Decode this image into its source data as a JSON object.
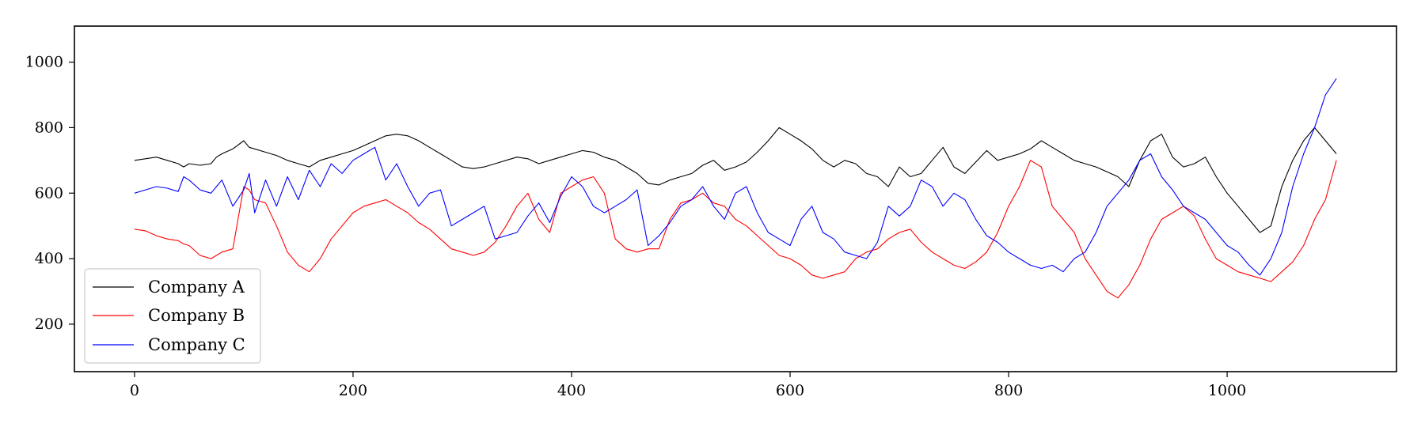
{
  "chart_data": {
    "type": "line",
    "title": "",
    "xlabel": "",
    "ylabel": "",
    "xlim": [
      -55,
      1155
    ],
    "ylim": [
      55,
      1110
    ],
    "xticks": [
      0,
      200,
      400,
      600,
      800,
      1000
    ],
    "yticks": [
      200,
      400,
      600,
      800,
      1000
    ],
    "grid": false,
    "legend": {
      "position": "lower-left"
    },
    "series": [
      {
        "name": "Company A",
        "color": "#000000",
        "x": [
          0,
          10,
          20,
          30,
          40,
          45,
          50,
          60,
          70,
          75,
          80,
          90,
          100,
          105,
          110,
          120,
          130,
          140,
          150,
          160,
          170,
          180,
          190,
          200,
          210,
          220,
          230,
          240,
          250,
          260,
          270,
          280,
          290,
          300,
          310,
          320,
          330,
          340,
          350,
          360,
          370,
          380,
          390,
          400,
          410,
          420,
          430,
          440,
          450,
          460,
          470,
          480,
          490,
          500,
          510,
          520,
          530,
          540,
          550,
          560,
          570,
          580,
          590,
          600,
          610,
          620,
          630,
          640,
          650,
          660,
          670,
          680,
          690,
          700,
          710,
          720,
          730,
          740,
          750,
          760,
          770,
          780,
          790,
          800,
          810,
          820,
          830,
          840,
          850,
          860,
          870,
          880,
          890,
          900,
          910,
          920,
          930,
          940,
          950,
          960,
          970,
          980,
          990,
          1000,
          1010,
          1020,
          1030,
          1040,
          1050,
          1060,
          1070,
          1080,
          1090,
          1100
        ],
        "y": [
          700,
          705,
          710,
          700,
          690,
          680,
          690,
          685,
          690,
          710,
          720,
          735,
          760,
          740,
          735,
          725,
          715,
          700,
          690,
          680,
          700,
          710,
          720,
          730,
          745,
          760,
          775,
          780,
          775,
          760,
          740,
          720,
          700,
          680,
          675,
          680,
          690,
          700,
          710,
          705,
          690,
          700,
          710,
          720,
          730,
          725,
          710,
          700,
          680,
          660,
          630,
          625,
          640,
          650,
          660,
          685,
          700,
          670,
          680,
          695,
          725,
          760,
          800,
          780,
          760,
          735,
          700,
          680,
          700,
          690,
          660,
          650,
          620,
          680,
          650,
          660,
          700,
          740,
          680,
          660,
          695,
          730,
          700,
          710,
          720,
          735,
          760,
          740,
          720,
          700,
          690,
          680,
          665,
          650,
          620,
          700,
          760,
          780,
          710,
          680,
          690,
          710,
          650,
          600,
          560,
          520,
          480,
          500,
          620,
          700,
          760,
          800,
          760,
          720
        ]
      },
      {
        "name": "Company B",
        "color": "#ff0000",
        "x": [
          0,
          10,
          20,
          30,
          40,
          45,
          50,
          60,
          70,
          75,
          80,
          90,
          100,
          105,
          110,
          120,
          130,
          140,
          150,
          160,
          170,
          180,
          190,
          200,
          210,
          220,
          230,
          240,
          250,
          260,
          270,
          280,
          290,
          300,
          310,
          320,
          330,
          340,
          350,
          360,
          370,
          380,
          390,
          400,
          410,
          420,
          430,
          440,
          450,
          460,
          470,
          480,
          490,
          500,
          510,
          520,
          530,
          540,
          550,
          560,
          570,
          580,
          590,
          600,
          610,
          620,
          630,
          640,
          650,
          660,
          670,
          680,
          690,
          700,
          710,
          720,
          730,
          740,
          750,
          760,
          770,
          780,
          790,
          800,
          810,
          820,
          830,
          840,
          850,
          860,
          870,
          880,
          890,
          900,
          910,
          920,
          930,
          940,
          950,
          960,
          970,
          980,
          990,
          1000,
          1010,
          1020,
          1030,
          1040,
          1050,
          1060,
          1070,
          1080,
          1090,
          1100
        ],
        "y": [
          490,
          485,
          470,
          460,
          455,
          445,
          440,
          410,
          400,
          410,
          420,
          430,
          620,
          610,
          580,
          570,
          500,
          420,
          380,
          360,
          400,
          460,
          500,
          540,
          560,
          570,
          580,
          560,
          540,
          510,
          490,
          460,
          430,
          420,
          410,
          420,
          450,
          500,
          560,
          600,
          520,
          480,
          600,
          620,
          640,
          650,
          600,
          460,
          430,
          420,
          430,
          430,
          520,
          570,
          580,
          600,
          570,
          560,
          520,
          500,
          470,
          440,
          410,
          400,
          380,
          350,
          340,
          350,
          360,
          400,
          420,
          430,
          460,
          480,
          490,
          450,
          420,
          400,
          380,
          370,
          390,
          420,
          480,
          560,
          620,
          700,
          680,
          560,
          520,
          480,
          400,
          350,
          300,
          280,
          320,
          380,
          460,
          520,
          540,
          560,
          530,
          460,
          400,
          380,
          360,
          350,
          340,
          330,
          360,
          390,
          440,
          520,
          580,
          700
        ]
      },
      {
        "name": "Company C",
        "color": "#0000ff",
        "x": [
          0,
          10,
          20,
          30,
          40,
          45,
          50,
          60,
          70,
          75,
          80,
          90,
          100,
          105,
          110,
          120,
          130,
          140,
          150,
          160,
          170,
          180,
          190,
          200,
          210,
          220,
          230,
          240,
          250,
          260,
          270,
          280,
          290,
          300,
          310,
          320,
          330,
          340,
          350,
          360,
          370,
          380,
          390,
          400,
          410,
          420,
          430,
          440,
          450,
          460,
          470,
          480,
          490,
          500,
          510,
          520,
          530,
          540,
          550,
          560,
          570,
          580,
          590,
          600,
          610,
          620,
          630,
          640,
          650,
          660,
          670,
          680,
          690,
          700,
          710,
          720,
          730,
          740,
          750,
          760,
          770,
          780,
          790,
          800,
          810,
          820,
          830,
          840,
          850,
          860,
          870,
          880,
          890,
          900,
          910,
          920,
          930,
          940,
          950,
          960,
          970,
          980,
          990,
          1000,
          1010,
          1020,
          1030,
          1040,
          1050,
          1060,
          1070,
          1080,
          1090,
          1100
        ],
        "y": [
          600,
          610,
          620,
          615,
          605,
          650,
          640,
          610,
          600,
          620,
          640,
          560,
          610,
          660,
          540,
          640,
          560,
          650,
          580,
          670,
          620,
          690,
          660,
          700,
          720,
          740,
          640,
          690,
          620,
          560,
          600,
          610,
          500,
          520,
          540,
          560,
          460,
          470,
          480,
          530,
          570,
          510,
          590,
          650,
          620,
          560,
          540,
          560,
          580,
          610,
          440,
          470,
          510,
          560,
          580,
          620,
          560,
          520,
          600,
          620,
          540,
          480,
          460,
          440,
          520,
          560,
          480,
          460,
          420,
          410,
          400,
          450,
          560,
          530,
          560,
          640,
          620,
          560,
          600,
          580,
          520,
          470,
          450,
          420,
          400,
          380,
          370,
          380,
          360,
          400,
          420,
          480,
          560,
          600,
          640,
          700,
          720,
          650,
          610,
          560,
          540,
          520,
          480,
          440,
          420,
          380,
          350,
          400,
          480,
          620,
          720,
          800,
          900,
          950
        ]
      }
    ]
  }
}
